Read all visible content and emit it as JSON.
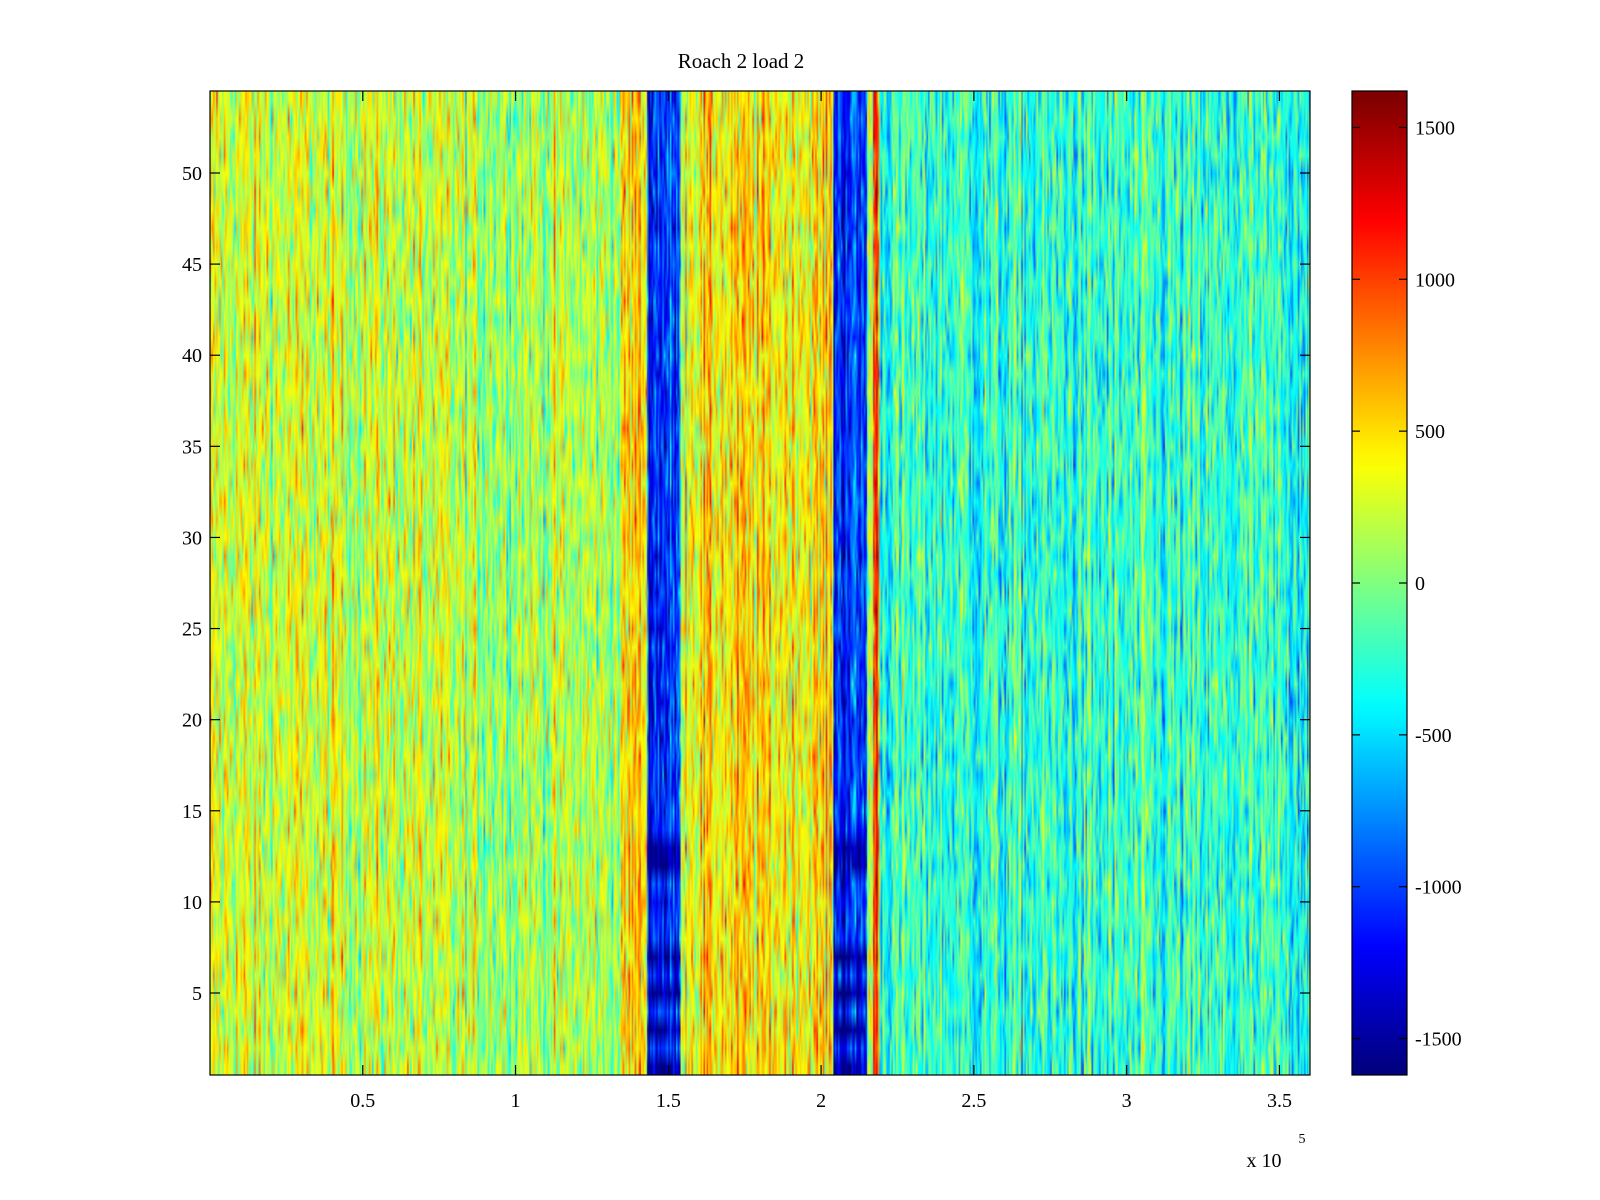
{
  "chart_data": {
    "type": "heatmap",
    "title": "Roach 2 load 2",
    "xlabel": "",
    "ylabel": "",
    "x_exponent_label": "x 10",
    "x_exponent_power": "5",
    "xlim": [
      0,
      3.6
    ],
    "ylim": [
      0.5,
      54.5
    ],
    "x_ticks": [
      0.5,
      1,
      1.5,
      2,
      2.5,
      3,
      3.5
    ],
    "x_tick_labels": [
      "0.5",
      "1",
      "1.5",
      "2",
      "2.5",
      "3",
      "3.5"
    ],
    "y_ticks": [
      5,
      10,
      15,
      20,
      25,
      30,
      35,
      40,
      45,
      50
    ],
    "y_tick_labels": [
      "5",
      "10",
      "15",
      "20",
      "25",
      "30",
      "35",
      "40",
      "45",
      "50"
    ],
    "rows": 54,
    "columns": 720,
    "colormap": "jet",
    "colorbar": {
      "range": [
        -1620,
        1620
      ],
      "ticks": [
        -1500,
        -1000,
        -500,
        0,
        500,
        1000,
        1500
      ],
      "tick_labels": [
        "-1500",
        "-1000",
        "-500",
        "0",
        "500",
        "1000",
        "1500"
      ]
    },
    "column_bands": [
      {
        "x_from": 0.0,
        "x_to": 0.7,
        "mean_value": 250
      },
      {
        "x_from": 0.7,
        "x_to": 1.35,
        "mean_value": 150
      },
      {
        "x_from": 1.35,
        "x_to": 1.43,
        "mean_value": 500
      },
      {
        "x_from": 1.43,
        "x_to": 1.54,
        "mean_value": -1050
      },
      {
        "x_from": 1.54,
        "x_to": 2.04,
        "mean_value": 450
      },
      {
        "x_from": 2.04,
        "x_to": 2.15,
        "mean_value": -1050
      },
      {
        "x_from": 2.15,
        "x_to": 2.17,
        "mean_value": 200
      },
      {
        "x_from": 2.17,
        "x_to": 2.19,
        "mean_value": 1000
      },
      {
        "x_from": 2.19,
        "x_to": 2.5,
        "mean_value": -250
      },
      {
        "x_from": 2.5,
        "x_to": 3.6,
        "mean_value": -280
      }
    ],
    "strong_rows": [
      1,
      3,
      5,
      7,
      12,
      13
    ]
  }
}
